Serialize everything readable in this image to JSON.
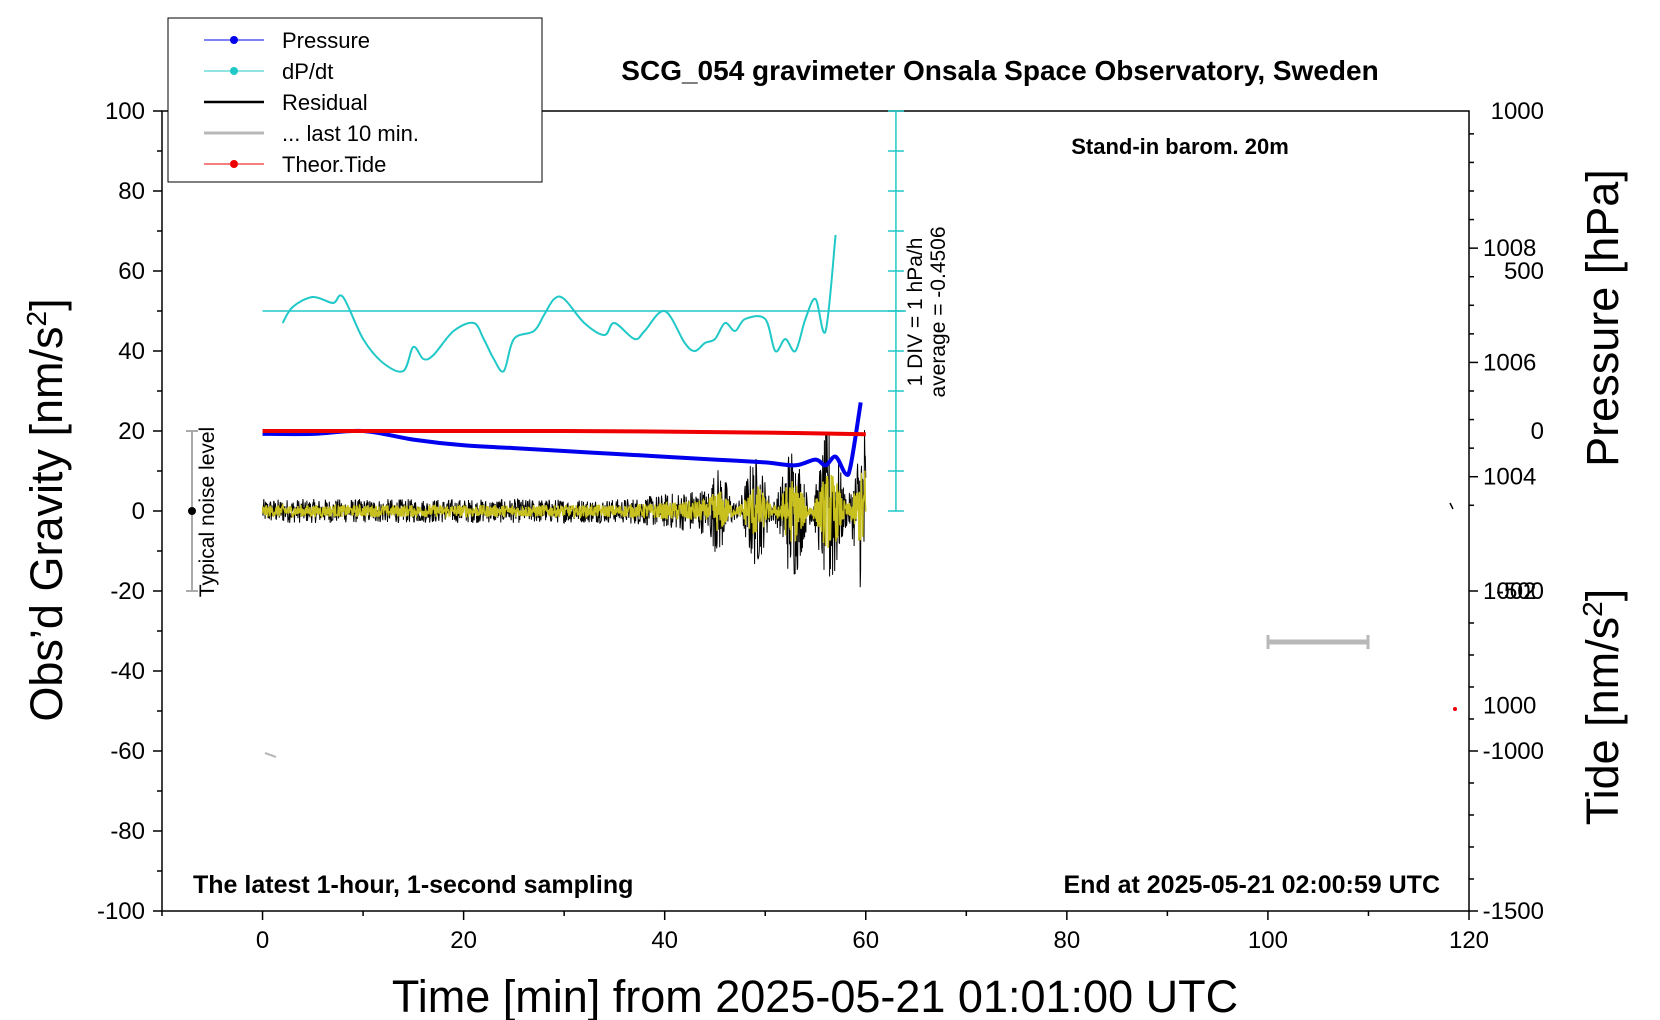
{
  "chart_data": {
    "type": "line",
    "title": "SCG_054 gravimeter Onsala Space Observatory, Sweden",
    "xlabel": "Time [min] from 2025-05-21 01:01:00 UTC",
    "ylabel_left": "Obs’d Gravity [nm/s",
    "ylabel_left_sup": "2",
    "ylabel_left_end": "]",
    "ylabel_right_top": "Pressure [hPa]",
    "ylabel_right_bottom": "Tide [nm/s",
    "ylabel_right_bottom_sup": "2",
    "ylabel_right_bottom_end": "]",
    "xlim": [
      -10,
      120
    ],
    "ylim": [
      -100,
      100
    ],
    "pressure_lim": [
      996.4,
      1010.4
    ],
    "tide_lim": [
      -1500,
      1000
    ],
    "x_ticks": [
      0,
      20,
      40,
      60,
      80,
      100,
      120
    ],
    "y_ticks": [
      -100,
      -80,
      -60,
      -40,
      -20,
      0,
      20,
      40,
      60,
      80,
      100
    ],
    "pressure_ticks": [
      1000,
      1002,
      1004,
      1006,
      1008
    ],
    "tide_ticks": [
      -1500,
      -1000,
      -500,
      0,
      500,
      1000
    ],
    "annotations": {
      "barometer": "Stand-in barom. 20m",
      "period": "The latest 1-hour, 1-second sampling",
      "end": "End at 2025-05-21 02:00:59 UTC",
      "noise": "Typical noise level",
      "div_line1": "1 DIV = 1 hPa/h",
      "div_line2": "average = -0.4506"
    },
    "legend": [
      {
        "name": "Pressure",
        "color": "#0000ee",
        "marker": true
      },
      {
        "name": "dP/dt",
        "color": "#20c8c8",
        "marker": true
      },
      {
        "name": "Residual",
        "color": "#000000",
        "marker": false
      },
      {
        "name": "... last 10 min.",
        "color": "#b8b8b8",
        "marker": false
      },
      {
        "name": "Theor.Tide",
        "color": "#ee0000",
        "marker": true
      }
    ],
    "series": [
      {
        "name": "Pressure",
        "axis": "pressure",
        "x": [
          0,
          5,
          10,
          15,
          20,
          25,
          30,
          35,
          40,
          45,
          50,
          53,
          55,
          56,
          57,
          58,
          58.5,
          59.5
        ],
        "values": [
          1004.75,
          1004.75,
          1004.8,
          1004.65,
          1004.55,
          1004.5,
          1004.45,
          1004.4,
          1004.35,
          1004.3,
          1004.25,
          1004.2,
          1004.3,
          1004.2,
          1004.35,
          1004.05,
          1004.2,
          1005.3
        ]
      },
      {
        "name": "dP/dt",
        "axis": "gravity",
        "x": [
          2,
          3,
          5,
          7,
          8,
          10,
          12,
          14,
          15,
          16,
          17,
          19,
          21,
          22,
          23,
          24,
          25,
          27,
          28,
          29,
          30,
          32,
          34,
          35,
          37,
          38,
          40,
          42,
          43,
          44,
          45,
          46,
          47,
          48,
          50,
          51,
          52,
          53,
          54,
          55,
          56,
          57
        ],
        "values": [
          47,
          51,
          53.5,
          52,
          53.5,
          43,
          37,
          35,
          41,
          38,
          39,
          45,
          47,
          43,
          38,
          35,
          43,
          45,
          49,
          53,
          53,
          47,
          44,
          47,
          43,
          45,
          50,
          42,
          40,
          42,
          43,
          47,
          45,
          48,
          48,
          40,
          43,
          40,
          48,
          53,
          45,
          69
        ]
      },
      {
        "name": "Residual",
        "axis": "gravity",
        "x_range": [
          0,
          60
        ],
        "amplitude_start": 3,
        "amplitude_end": 15
      },
      {
        "name": "... last 10 min.",
        "axis": "gravity",
        "x_range": [
          0,
          60
        ],
        "amplitude_start": 1.5,
        "amplitude_end": 7
      },
      {
        "name": "Theor.Tide",
        "axis": "tide",
        "x": [
          0,
          10,
          20,
          30,
          40,
          50,
          60
        ],
        "values": [
          0,
          0,
          0,
          0,
          -2,
          -5,
          -10
        ]
      }
    ]
  }
}
